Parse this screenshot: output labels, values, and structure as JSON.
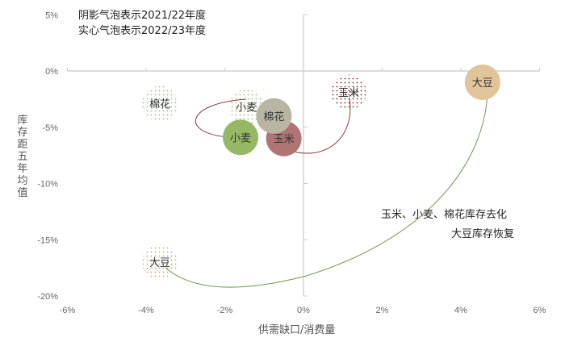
{
  "chart_data": {
    "type": "scatter",
    "subtype": "bubble",
    "title": "",
    "notes": [
      "阴影气泡表示2021/22年度",
      "实心气泡表示2022/23年度"
    ],
    "xlabel": "供需缺口/消费量",
    "ylabel": "库存距五年均值",
    "xlim": [
      -6,
      6
    ],
    "ylim": [
      -20,
      5
    ],
    "x_ticks": [
      "-6%",
      "-4%",
      "-2%",
      "0%",
      "2%",
      "4%",
      "6%"
    ],
    "y_ticks": [
      "5%",
      "0%",
      "-5%",
      "-10%",
      "-15%",
      "-20%"
    ],
    "grid": false,
    "series": [
      {
        "name": "2021/22年度 (阴影)",
        "style": "dotted",
        "points": [
          {
            "label": "棉花",
            "x": -3.65,
            "y": -2.9,
            "color": "#9cbf7f"
          },
          {
            "label": "小麦",
            "x": -1.45,
            "y": -3.2,
            "color": "#8fbf6a"
          },
          {
            "label": "玉米",
            "x": 1.15,
            "y": -1.9,
            "color": "#8b1a1a"
          },
          {
            "label": "大豆",
            "x": -3.65,
            "y": -17.0,
            "color": "#d9a060"
          }
        ]
      },
      {
        "name": "2022/23年度 (实心)",
        "style": "solid",
        "points": [
          {
            "label": "小麦",
            "x": -1.6,
            "y": -5.9,
            "color": "#96b865"
          },
          {
            "label": "棉花",
            "x": -0.75,
            "y": -4.0,
            "color": "#b8b6a2"
          },
          {
            "label": "玉米",
            "x": -0.5,
            "y": -6.0,
            "color": "#b07474"
          },
          {
            "label": "大豆",
            "x": 4.55,
            "y": -1.0,
            "color": "#e2c49a"
          }
        ]
      }
    ],
    "arrows": [
      {
        "commodity": "小麦",
        "from": [
          -1.45,
          -3.2
        ],
        "to": [
          -1.6,
          -5.9
        ],
        "color": "#8b3a3a"
      },
      {
        "commodity": "玉米",
        "from": [
          1.15,
          -1.9
        ],
        "to": [
          -0.5,
          -6.0
        ],
        "color": "#8b3a3a"
      },
      {
        "commodity": "大豆",
        "from": [
          -3.65,
          -17.0
        ],
        "to": [
          4.55,
          -1.0
        ],
        "color": "#6e9a50"
      }
    ],
    "annotations": [
      "玉米、小麦、棉花库存去化",
      "大豆库存恢复"
    ]
  },
  "legend": {
    "line1": "阴影气泡表示2021/22年度",
    "line2": "实心气泡表示2022/23年度"
  },
  "axes": {
    "xlabel": "供需缺口/消费量",
    "ylabel": "库存距五年均值"
  },
  "annotations": {
    "line1": "玉米、小麦、棉花库存去化",
    "line2": "大豆库存恢复"
  }
}
